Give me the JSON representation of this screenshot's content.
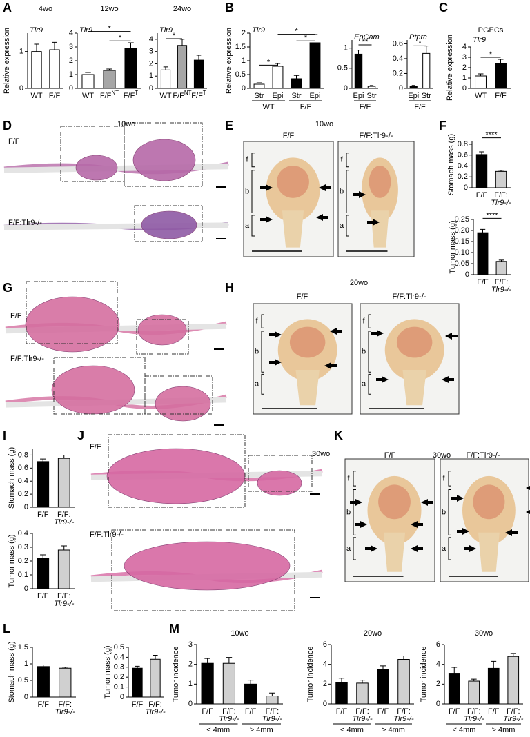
{
  "figure": {
    "panel_letters": [
      "A",
      "B",
      "C",
      "D",
      "E",
      "F",
      "G",
      "H",
      "I",
      "J",
      "K",
      "L",
      "M"
    ],
    "zone_labels": [
      "f",
      "b",
      "a"
    ],
    "images": {
      "D": {
        "time": "10wo",
        "labels": [
          "F/F",
          "F/F:Tlr9-/-"
        ]
      },
      "E": {
        "time": "10wo",
        "labels": [
          "F/F",
          "F/F:Tlr9-/-"
        ]
      },
      "G": {
        "labels": [
          "F/F",
          "F/F:Tlr9-/-"
        ]
      },
      "H": {
        "time": "20wo",
        "labels": [
          "F/F",
          "F/F:Tlr9-/-"
        ]
      },
      "J": {
        "time": "30wo",
        "labels": [
          "F/F",
          "F/F:Tlr9-/-"
        ]
      },
      "K": {
        "time": "30wo",
        "labels": [
          "F/F",
          "F/F:Tlr9-/-"
        ]
      }
    }
  },
  "chart_data": [
    {
      "type": "bar",
      "title": "4wo",
      "gene": "Tlr9",
      "ylabel": "Relative expression",
      "categories": [
        [
          "WT"
        ],
        [
          "F/F"
        ]
      ],
      "values": [
        1.0,
        1.05
      ],
      "errors": [
        0.2,
        0.2
      ],
      "colors": [
        "#ffffff",
        "#ffffff"
      ],
      "ylim": [
        0,
        1.5
      ],
      "yticks": [
        0,
        1
      ]
    },
    {
      "type": "bar",
      "title": "12wo",
      "gene": "Tlr9",
      "categories": [
        [
          "WT"
        ],
        [
          "F/F"
        ],
        [
          "F/F"
        ]
      ],
      "superscripts": [
        null,
        "NT",
        "T"
      ],
      "values": [
        1.0,
        1.3,
        2.9
      ],
      "errors": [
        0.15,
        0.1,
        0.4
      ],
      "colors": [
        "#ffffff",
        "#a6a6a6",
        "#000000"
      ],
      "ylim": [
        0,
        4
      ],
      "yticks": [
        0,
        1,
        2,
        3,
        4
      ],
      "significance": [
        "*",
        "*"
      ]
    },
    {
      "type": "bar",
      "title": "24wo",
      "gene": "Tlr9",
      "categories": [
        [
          "WT"
        ],
        [
          "F/F"
        ],
        [
          "F/F"
        ]
      ],
      "superscripts": [
        null,
        "NT",
        "T"
      ],
      "values": [
        1.5,
        3.5,
        2.3
      ],
      "errors": [
        0.25,
        0.5,
        0.4
      ],
      "colors": [
        "#ffffff",
        "#a6a6a6",
        "#000000"
      ],
      "ylim": [
        0,
        4.5
      ],
      "yticks": [
        0,
        1,
        2,
        3,
        4
      ],
      "significance": [
        "*"
      ]
    },
    {
      "type": "bar",
      "gene": "Tlr9",
      "ylabel": "Relative expression",
      "categories": [
        [
          "Str"
        ],
        [
          "Epi"
        ],
        [
          "Str"
        ],
        [
          "Epi"
        ]
      ],
      "groups": [
        "WT",
        "F/F"
      ],
      "values": [
        0.15,
        0.8,
        0.35,
        1.65
      ],
      "errors": [
        0.05,
        0.1,
        0.12,
        0.3
      ],
      "colors": [
        "#ffffff",
        "#ffffff",
        "#000000",
        "#000000"
      ],
      "ylim": [
        0,
        2
      ],
      "yticks": [
        0,
        0.5,
        1,
        1.5,
        2
      ],
      "significance": [
        "*",
        "*",
        "*"
      ]
    },
    {
      "type": "bar",
      "gene": "EpCam",
      "categories": [
        [
          "Epi"
        ],
        [
          "Str"
        ]
      ],
      "groups": [
        "F/F"
      ],
      "values": [
        0.85,
        0.05
      ],
      "errors": [
        0.1,
        0.02
      ],
      "colors": [
        "#000000",
        "#ffffff"
      ],
      "ylim": [
        0,
        1.2
      ],
      "yticks": [
        0,
        0.5,
        1
      ],
      "significance": [
        "**"
      ]
    },
    {
      "type": "bar",
      "gene": "Ptprc",
      "categories": [
        [
          "Epi"
        ],
        [
          "Str"
        ]
      ],
      "groups": [
        "F/F"
      ],
      "values": [
        0.03,
        0.47
      ],
      "errors": [
        0.01,
        0.1
      ],
      "colors": [
        "#000000",
        "#ffffff"
      ],
      "ylim": [
        0,
        0.65
      ],
      "yticks": [
        0,
        0.2,
        0.4,
        0.6
      ],
      "significance": [
        "*"
      ]
    },
    {
      "type": "bar",
      "title": "PGECs",
      "gene": "Tlr9",
      "ylabel": "Relative expression",
      "categories": [
        [
          "WT"
        ],
        [
          "F/F"
        ]
      ],
      "values": [
        1.2,
        2.4
      ],
      "errors": [
        0.2,
        0.4
      ],
      "colors": [
        "#ffffff",
        "#000000"
      ],
      "ylim": [
        0,
        4
      ],
      "yticks": [
        0,
        1,
        2,
        3,
        4
      ],
      "significance": [
        "*"
      ]
    },
    {
      "type": "bar",
      "ylabel": "Stomach mass (g)",
      "categories": [
        [
          "F/F"
        ],
        [
          "F/F:",
          "Tlr9-/-"
        ]
      ],
      "values": [
        0.61,
        0.3
      ],
      "errors": [
        0.05,
        0.02
      ],
      "colors": [
        "#000000",
        "#d0d0d0"
      ],
      "ylim": [
        0,
        0.85
      ],
      "yticks": [
        0,
        0.2,
        0.4,
        0.6,
        0.8
      ],
      "significance": [
        "****"
      ]
    },
    {
      "type": "bar",
      "ylabel": "Tumor mass (g)",
      "categories": [
        [
          "F/F"
        ],
        [
          "F/F:",
          "Tlr9-/-"
        ]
      ],
      "values": [
        0.19,
        0.06
      ],
      "errors": [
        0.015,
        0.006
      ],
      "colors": [
        "#000000",
        "#d0d0d0"
      ],
      "ylim": [
        0,
        0.25
      ],
      "yticks": [
        0,
        0.05,
        {
          "value": 0.1,
          "label": "0.10"
        },
        0.15,
        {
          "value": 0.2,
          "label": "0.20"
        },
        0.25
      ],
      "significance": [
        "****"
      ]
    },
    {
      "type": "bar",
      "ylabel": "Stomach mass (g)",
      "categories": [
        [
          "F/F"
        ],
        [
          "F/F:",
          "Tlr9-/-"
        ]
      ],
      "values": [
        0.7,
        0.75
      ],
      "errors": [
        0.04,
        0.05
      ],
      "colors": [
        "#000000",
        "#d0d0d0"
      ],
      "ylim": [
        0,
        0.9
      ],
      "yticks": [
        0,
        0.2,
        0.4,
        0.6,
        0.8
      ]
    },
    {
      "type": "bar",
      "ylabel": "Tumor mass (g)",
      "categories": [
        [
          "F/F"
        ],
        [
          "F/F:",
          "Tlr9-/-"
        ]
      ],
      "values": [
        0.22,
        0.28
      ],
      "errors": [
        0.025,
        0.03
      ],
      "colors": [
        "#000000",
        "#d0d0d0"
      ],
      "ylim": [
        0,
        0.4
      ],
      "yticks": [
        0,
        0.1,
        0.2,
        0.3,
        0.4
      ]
    },
    {
      "type": "bar",
      "ylabel": "Stomach mass (g)",
      "categories": [
        [
          "F/F"
        ],
        [
          "F/F:",
          "Tlr9-/-"
        ]
      ],
      "values": [
        0.92,
        0.87
      ],
      "errors": [
        0.05,
        0.03
      ],
      "colors": [
        "#000000",
        "#d0d0d0"
      ],
      "ylim": [
        0,
        1.5
      ],
      "yticks": [
        0,
        0.5,
        1,
        1.5
      ]
    },
    {
      "type": "bar",
      "ylabel": "Tumor mass (g)",
      "categories": [
        [
          "F/F"
        ],
        [
          "F/F:",
          "Tlr9-/-"
        ]
      ],
      "values": [
        0.29,
        0.38
      ],
      "errors": [
        0.02,
        0.04
      ],
      "colors": [
        "#000000",
        "#d0d0d0"
      ],
      "ylim": [
        0,
        0.5
      ],
      "yticks": [
        0,
        0.1,
        0.2,
        0.3,
        0.4,
        0.5
      ]
    },
    {
      "type": "bar",
      "title": "10wo",
      "ylabel": "Tumor incidence",
      "categories": [
        [
          "F/F"
        ],
        [
          "F/F:",
          "Tlr9-/-"
        ],
        [
          "F/F"
        ],
        [
          "F/F:",
          "Tlr9-/-"
        ]
      ],
      "groups": [
        "< 4mm",
        "> 4mm"
      ],
      "values": [
        2.05,
        2.05,
        1.0,
        0.4
      ],
      "errors": [
        0.25,
        0.3,
        0.2,
        0.15
      ],
      "colors": [
        "#000000",
        "#d0d0d0",
        "#000000",
        "#d0d0d0"
      ],
      "ylim": [
        0,
        3
      ],
      "yticks": [
        0,
        1,
        2,
        3
      ]
    },
    {
      "type": "bar",
      "title": "20wo",
      "ylabel": "Tumor incidence",
      "categories": [
        [
          "F/F"
        ],
        [
          "F/F:",
          "Tlr9-/-"
        ],
        [
          "F/F"
        ],
        [
          "F/F:",
          "Tlr9-/-"
        ]
      ],
      "groups": [
        "< 4mm",
        "> 4mm"
      ],
      "values": [
        2.15,
        2.1,
        3.5,
        4.5
      ],
      "errors": [
        0.45,
        0.3,
        0.35,
        0.35
      ],
      "colors": [
        "#000000",
        "#d0d0d0",
        "#000000",
        "#d0d0d0"
      ],
      "ylim": [
        0,
        6
      ],
      "yticks": [
        0,
        2,
        4,
        6
      ]
    },
    {
      "type": "bar",
      "title": "30wo",
      "ylabel": "Tumor incidence",
      "categories": [
        [
          "F/F"
        ],
        [
          "F/F:",
          "Tlr9-/-"
        ],
        [
          "F/F"
        ],
        [
          "F/F:",
          "Tlr9-/-"
        ]
      ],
      "groups": [
        "< 4mm",
        "> 4mm"
      ],
      "values": [
        3.1,
        2.3,
        3.6,
        4.8
      ],
      "errors": [
        0.6,
        0.2,
        0.7,
        0.3
      ],
      "colors": [
        "#000000",
        "#d0d0d0",
        "#000000",
        "#d0d0d0"
      ],
      "ylim": [
        0,
        6
      ],
      "yticks": [
        0,
        2,
        4,
        6
      ]
    }
  ]
}
